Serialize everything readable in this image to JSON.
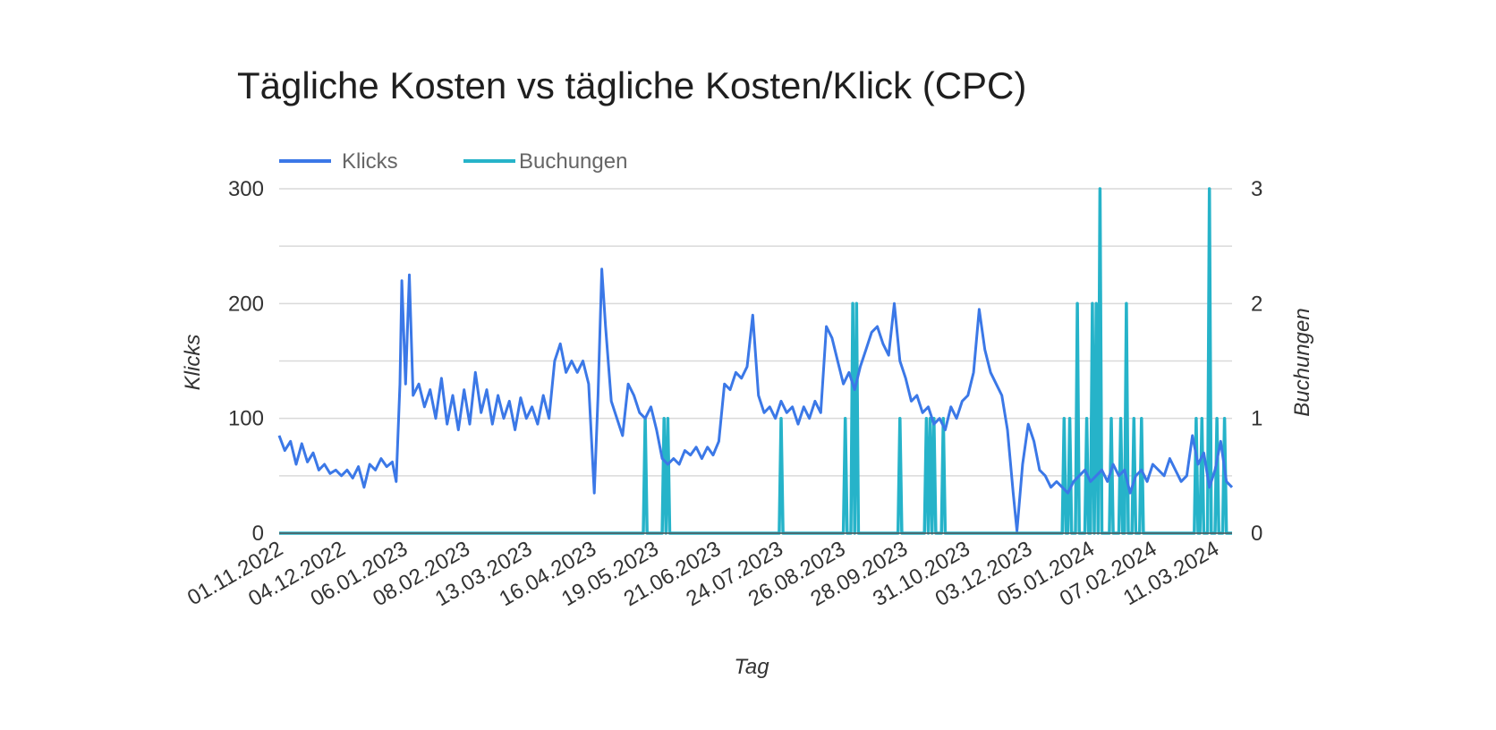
{
  "chart_data": {
    "type": "line",
    "title": "Tägliche Kosten vs tägliche Kosten/Klick (CPC)",
    "xlabel": "Tag",
    "ylabel_left": "Klicks",
    "ylabel_right": "Buchungen",
    "x_start": "2022-11-01",
    "x_end": "2024-03-20",
    "x_tick_labels": [
      "01.11.2022",
      "04.12.2022",
      "06.01.2023",
      "08.02.2023",
      "13.03.2023",
      "16.04.2023",
      "19.05.2023",
      "21.06.2023",
      "24.07.2023",
      "26.08.2023",
      "28.09.2023",
      "31.10.2023",
      "03.12.2023",
      "05.01.2024",
      "07.02.2024",
      "11.03.2024"
    ],
    "y_left": {
      "min": 0,
      "max": 300,
      "ticks": [
        0,
        100,
        200,
        300
      ],
      "tick_labels": [
        "0",
        "100",
        "200",
        "300"
      ]
    },
    "y_right": {
      "min": 0,
      "max": 3,
      "ticks": [
        0,
        1,
        2,
        3
      ],
      "tick_labels": [
        "0",
        "1",
        "2",
        "3"
      ]
    },
    "grid": true,
    "legend_position": "top-left",
    "series": [
      {
        "name": "Klicks",
        "axis": "left",
        "color": "#3b78e7",
        "points": [
          [
            "2022-11-01",
            85
          ],
          [
            "2022-11-04",
            72
          ],
          [
            "2022-11-07",
            80
          ],
          [
            "2022-11-10",
            60
          ],
          [
            "2022-11-13",
            78
          ],
          [
            "2022-11-16",
            62
          ],
          [
            "2022-11-19",
            70
          ],
          [
            "2022-11-22",
            55
          ],
          [
            "2022-11-25",
            60
          ],
          [
            "2022-11-28",
            52
          ],
          [
            "2022-12-01",
            55
          ],
          [
            "2022-12-04",
            50
          ],
          [
            "2022-12-07",
            55
          ],
          [
            "2022-12-10",
            48
          ],
          [
            "2022-12-13",
            58
          ],
          [
            "2022-12-16",
            40
          ],
          [
            "2022-12-19",
            60
          ],
          [
            "2022-12-22",
            55
          ],
          [
            "2022-12-25",
            65
          ],
          [
            "2022-12-28",
            58
          ],
          [
            "2022-12-31",
            62
          ],
          [
            "2023-01-02",
            45
          ],
          [
            "2023-01-04",
            130
          ],
          [
            "2023-01-05",
            220
          ],
          [
            "2023-01-07",
            130
          ],
          [
            "2023-01-09",
            225
          ],
          [
            "2023-01-11",
            120
          ],
          [
            "2023-01-14",
            130
          ],
          [
            "2023-01-17",
            110
          ],
          [
            "2023-01-20",
            125
          ],
          [
            "2023-01-23",
            100
          ],
          [
            "2023-01-26",
            135
          ],
          [
            "2023-01-29",
            95
          ],
          [
            "2023-02-01",
            120
          ],
          [
            "2023-02-04",
            90
          ],
          [
            "2023-02-07",
            125
          ],
          [
            "2023-02-10",
            95
          ],
          [
            "2023-02-13",
            140
          ],
          [
            "2023-02-16",
            105
          ],
          [
            "2023-02-19",
            125
          ],
          [
            "2023-02-22",
            95
          ],
          [
            "2023-02-25",
            120
          ],
          [
            "2023-02-28",
            100
          ],
          [
            "2023-03-03",
            115
          ],
          [
            "2023-03-06",
            90
          ],
          [
            "2023-03-09",
            118
          ],
          [
            "2023-03-12",
            100
          ],
          [
            "2023-03-15",
            110
          ],
          [
            "2023-03-18",
            95
          ],
          [
            "2023-03-21",
            120
          ],
          [
            "2023-03-24",
            100
          ],
          [
            "2023-03-27",
            150
          ],
          [
            "2023-03-30",
            165
          ],
          [
            "2023-04-02",
            140
          ],
          [
            "2023-04-05",
            150
          ],
          [
            "2023-04-08",
            140
          ],
          [
            "2023-04-11",
            150
          ],
          [
            "2023-04-14",
            130
          ],
          [
            "2023-04-17",
            35
          ],
          [
            "2023-04-19",
            120
          ],
          [
            "2023-04-21",
            230
          ],
          [
            "2023-04-23",
            180
          ],
          [
            "2023-04-26",
            115
          ],
          [
            "2023-04-29",
            100
          ],
          [
            "2023-05-02",
            85
          ],
          [
            "2023-05-05",
            130
          ],
          [
            "2023-05-08",
            120
          ],
          [
            "2023-05-11",
            105
          ],
          [
            "2023-05-14",
            100
          ],
          [
            "2023-05-17",
            110
          ],
          [
            "2023-05-20",
            90
          ],
          [
            "2023-05-23",
            65
          ],
          [
            "2023-05-26",
            60
          ],
          [
            "2023-05-29",
            65
          ],
          [
            "2023-06-01",
            60
          ],
          [
            "2023-06-04",
            72
          ],
          [
            "2023-06-07",
            68
          ],
          [
            "2023-06-10",
            75
          ],
          [
            "2023-06-13",
            65
          ],
          [
            "2023-06-16",
            75
          ],
          [
            "2023-06-19",
            68
          ],
          [
            "2023-06-22",
            80
          ],
          [
            "2023-06-25",
            130
          ],
          [
            "2023-06-28",
            125
          ],
          [
            "2023-07-01",
            140
          ],
          [
            "2023-07-04",
            135
          ],
          [
            "2023-07-07",
            145
          ],
          [
            "2023-07-10",
            190
          ],
          [
            "2023-07-13",
            120
          ],
          [
            "2023-07-16",
            105
          ],
          [
            "2023-07-19",
            110
          ],
          [
            "2023-07-22",
            100
          ],
          [
            "2023-07-25",
            115
          ],
          [
            "2023-07-28",
            105
          ],
          [
            "2023-07-31",
            110
          ],
          [
            "2023-08-03",
            95
          ],
          [
            "2023-08-06",
            110
          ],
          [
            "2023-08-09",
            100
          ],
          [
            "2023-08-12",
            115
          ],
          [
            "2023-08-15",
            105
          ],
          [
            "2023-08-18",
            180
          ],
          [
            "2023-08-21",
            170
          ],
          [
            "2023-08-24",
            150
          ],
          [
            "2023-08-27",
            130
          ],
          [
            "2023-08-30",
            140
          ],
          [
            "2023-09-02",
            125
          ],
          [
            "2023-09-05",
            145
          ],
          [
            "2023-09-08",
            160
          ],
          [
            "2023-09-11",
            175
          ],
          [
            "2023-09-14",
            180
          ],
          [
            "2023-09-17",
            165
          ],
          [
            "2023-09-20",
            155
          ],
          [
            "2023-09-23",
            200
          ],
          [
            "2023-09-26",
            150
          ],
          [
            "2023-09-29",
            135
          ],
          [
            "2023-10-02",
            115
          ],
          [
            "2023-10-05",
            120
          ],
          [
            "2023-10-08",
            105
          ],
          [
            "2023-10-11",
            110
          ],
          [
            "2023-10-14",
            95
          ],
          [
            "2023-10-17",
            100
          ],
          [
            "2023-10-20",
            90
          ],
          [
            "2023-10-23",
            110
          ],
          [
            "2023-10-26",
            100
          ],
          [
            "2023-10-29",
            115
          ],
          [
            "2023-11-01",
            120
          ],
          [
            "2023-11-04",
            140
          ],
          [
            "2023-11-07",
            195
          ],
          [
            "2023-11-10",
            160
          ],
          [
            "2023-11-13",
            140
          ],
          [
            "2023-11-16",
            130
          ],
          [
            "2023-11-19",
            120
          ],
          [
            "2023-11-22",
            90
          ],
          [
            "2023-11-25",
            35
          ],
          [
            "2023-11-27",
            2
          ],
          [
            "2023-11-30",
            60
          ],
          [
            "2023-12-03",
            95
          ],
          [
            "2023-12-06",
            80
          ],
          [
            "2023-12-09",
            55
          ],
          [
            "2023-12-12",
            50
          ],
          [
            "2023-12-15",
            40
          ],
          [
            "2023-12-18",
            45
          ],
          [
            "2023-12-21",
            40
          ],
          [
            "2023-12-24",
            35
          ],
          [
            "2023-12-27",
            45
          ],
          [
            "2023-12-30",
            50
          ],
          [
            "2024-01-02",
            55
          ],
          [
            "2024-01-05",
            45
          ],
          [
            "2024-01-08",
            50
          ],
          [
            "2024-01-11",
            55
          ],
          [
            "2024-01-14",
            45
          ],
          [
            "2024-01-17",
            60
          ],
          [
            "2024-01-20",
            50
          ],
          [
            "2024-01-23",
            55
          ],
          [
            "2024-01-26",
            35
          ],
          [
            "2024-01-29",
            50
          ],
          [
            "2024-02-01",
            55
          ],
          [
            "2024-02-04",
            45
          ],
          [
            "2024-02-07",
            60
          ],
          [
            "2024-02-10",
            55
          ],
          [
            "2024-02-13",
            50
          ],
          [
            "2024-02-16",
            65
          ],
          [
            "2024-02-19",
            55
          ],
          [
            "2024-02-22",
            45
          ],
          [
            "2024-02-25",
            50
          ],
          [
            "2024-02-28",
            85
          ],
          [
            "2024-03-02",
            60
          ],
          [
            "2024-03-05",
            70
          ],
          [
            "2024-03-08",
            40
          ],
          [
            "2024-03-11",
            55
          ],
          [
            "2024-03-14",
            80
          ],
          [
            "2024-03-17",
            45
          ],
          [
            "2024-03-20",
            40
          ]
        ]
      },
      {
        "name": "Buchungen",
        "axis": "right",
        "color": "#26b3c9",
        "spikes": [
          [
            "2023-05-14",
            1
          ],
          [
            "2023-05-24",
            1
          ],
          [
            "2023-05-26",
            1
          ],
          [
            "2023-07-25",
            1
          ],
          [
            "2023-08-28",
            1
          ],
          [
            "2023-09-01",
            2
          ],
          [
            "2023-09-03",
            2
          ],
          [
            "2023-09-26",
            1
          ],
          [
            "2023-10-10",
            1
          ],
          [
            "2023-10-12",
            1
          ],
          [
            "2023-10-14",
            1
          ],
          [
            "2023-10-19",
            1
          ],
          [
            "2023-12-22",
            1
          ],
          [
            "2023-12-25",
            1
          ],
          [
            "2023-12-29",
            2
          ],
          [
            "2024-01-03",
            1
          ],
          [
            "2024-01-06",
            2
          ],
          [
            "2024-01-08",
            2
          ],
          [
            "2024-01-10",
            3
          ],
          [
            "2024-01-16",
            1
          ],
          [
            "2024-01-21",
            1
          ],
          [
            "2024-01-24",
            2
          ],
          [
            "2024-01-28",
            1
          ],
          [
            "2024-02-01",
            1
          ],
          [
            "2024-03-01",
            1
          ],
          [
            "2024-03-04",
            1
          ],
          [
            "2024-03-08",
            3
          ],
          [
            "2024-03-12",
            1
          ],
          [
            "2024-03-16",
            1
          ]
        ]
      }
    ]
  }
}
